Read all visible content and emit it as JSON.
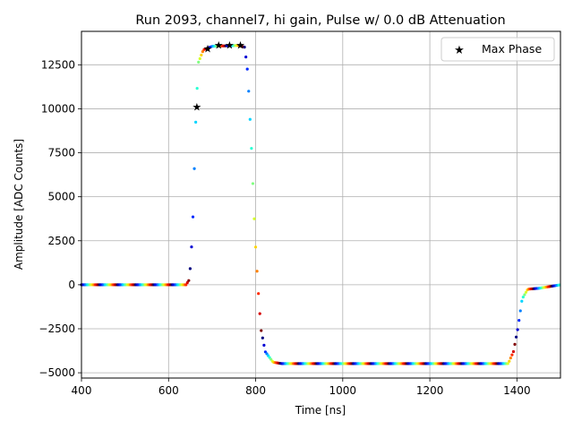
{
  "chart_data": {
    "type": "scatter",
    "title": "Run 2093, channel7, hi gain, Pulse w/ 0.0 dB Attenuation",
    "xlabel": "Time [ns]",
    "ylabel": "Amplitude [ADC Counts]",
    "xlim": [
      400,
      1500
    ],
    "ylim": [
      -5300,
      14400
    ],
    "xticks": [
      400,
      600,
      800,
      1000,
      1200,
      1400
    ],
    "yticks": [
      -5000,
      -2500,
      0,
      2500,
      5000,
      7500,
      10000,
      12500
    ],
    "grid": true,
    "legend": {
      "position": "top-right",
      "entries": [
        "Max Phase"
      ]
    },
    "waveform_breakpoints": [
      {
        "t": 400,
        "v": 0
      },
      {
        "t": 640,
        "v": 0
      },
      {
        "t": 648,
        "v": 300
      },
      {
        "t": 655,
        "v": 3000
      },
      {
        "t": 662,
        "v": 9000
      },
      {
        "t": 668,
        "v": 12600
      },
      {
        "t": 680,
        "v": 13350
      },
      {
        "t": 700,
        "v": 13550
      },
      {
        "t": 760,
        "v": 13600
      },
      {
        "t": 775,
        "v": 13500
      },
      {
        "t": 782,
        "v": 12000
      },
      {
        "t": 790,
        "v": 8000
      },
      {
        "t": 798,
        "v": 3000
      },
      {
        "t": 805,
        "v": 0
      },
      {
        "t": 812,
        "v": -2500
      },
      {
        "t": 822,
        "v": -3800
      },
      {
        "t": 840,
        "v": -4400
      },
      {
        "t": 860,
        "v": -4480
      },
      {
        "t": 1380,
        "v": -4480
      },
      {
        "t": 1392,
        "v": -3800
      },
      {
        "t": 1402,
        "v": -2500
      },
      {
        "t": 1412,
        "v": -800
      },
      {
        "t": 1425,
        "v": -250
      },
      {
        "t": 1450,
        "v": -200
      },
      {
        "t": 1500,
        "v": 0
      }
    ],
    "sample_step_ns": 3.2,
    "max_phase_points": [
      {
        "t": 665,
        "v": 10100
      },
      {
        "t": 690,
        "v": 13400
      },
      {
        "t": 715,
        "v": 13600
      },
      {
        "t": 740,
        "v": 13620
      },
      {
        "t": 765,
        "v": 13600
      }
    ],
    "colors": {
      "axes": "#000000",
      "grid": "#b0b0b0",
      "marker": "#000000",
      "background": "#ffffff"
    }
  }
}
